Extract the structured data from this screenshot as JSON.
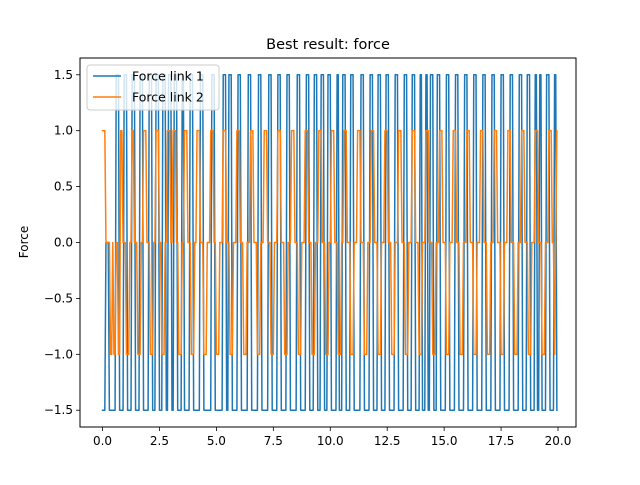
{
  "chart_data": {
    "type": "line",
    "title": "Best result: force",
    "xlabel": "",
    "ylabel": "Force",
    "xlim": [
      -0.99,
      20.79
    ],
    "ylim": [
      -1.65,
      1.65
    ],
    "xticks": [
      0.0,
      2.5,
      5.0,
      7.5,
      10.0,
      12.5,
      15.0,
      17.5,
      20.0
    ],
    "xtick_labels": [
      "0.0",
      "2.5",
      "5.0",
      "7.5",
      "10.0",
      "12.5",
      "15.0",
      "17.5",
      "20.0"
    ],
    "yticks": [
      -1.5,
      -1.0,
      -0.5,
      0.0,
      0.5,
      1.0,
      1.5
    ],
    "ytick_labels": [
      "−1.5",
      "−1.0",
      "−0.5",
      "0.0",
      "0.5",
      "1.0",
      "1.5"
    ],
    "grid": false,
    "legend_position": "upper-left",
    "sample_interval": 0.05,
    "series": [
      {
        "name": "Force link 1",
        "color": "#1f77b4",
        "steps": [
          [
            0.0,
            -1.5
          ],
          [
            0.15,
            0.0
          ],
          [
            0.3,
            -1.5
          ],
          [
            0.6,
            1.5
          ],
          [
            0.75,
            -1.5
          ],
          [
            0.95,
            1.5
          ],
          [
            1.1,
            -1.5
          ],
          [
            1.3,
            1.5
          ],
          [
            1.45,
            -1.5
          ],
          [
            1.65,
            1.5
          ],
          [
            1.8,
            -1.5
          ],
          [
            2.05,
            1.5
          ],
          [
            2.2,
            -1.5
          ],
          [
            2.35,
            1.5
          ],
          [
            2.5,
            -1.5
          ],
          [
            2.65,
            1.5
          ],
          [
            2.8,
            -1.5
          ],
          [
            2.9,
            1.5
          ],
          [
            3.05,
            -1.5
          ],
          [
            3.15,
            1.5
          ],
          [
            3.3,
            -1.5
          ],
          [
            3.5,
            1.5
          ],
          [
            3.6,
            -1.5
          ],
          [
            3.85,
            1.5
          ],
          [
            4.0,
            -1.5
          ],
          [
            4.3,
            1.5
          ],
          [
            4.45,
            -1.5
          ],
          [
            4.8,
            1.5
          ],
          [
            4.95,
            -1.5
          ],
          [
            5.3,
            1.5
          ],
          [
            5.45,
            -1.5
          ],
          [
            5.55,
            1.5
          ],
          [
            5.7,
            -1.5
          ],
          [
            5.95,
            1.5
          ],
          [
            6.1,
            -1.5
          ],
          [
            6.4,
            1.5
          ],
          [
            6.55,
            -1.5
          ],
          [
            6.85,
            1.5
          ],
          [
            7.0,
            -1.5
          ],
          [
            7.3,
            1.5
          ],
          [
            7.45,
            -1.5
          ],
          [
            7.7,
            1.5
          ],
          [
            7.85,
            -1.5
          ],
          [
            8.1,
            1.5
          ],
          [
            8.25,
            -1.5
          ],
          [
            8.55,
            1.5
          ],
          [
            8.7,
            -1.5
          ],
          [
            8.95,
            1.5
          ],
          [
            9.1,
            -1.5
          ],
          [
            9.3,
            1.5
          ],
          [
            9.45,
            -1.5
          ],
          [
            9.6,
            1.5
          ],
          [
            9.75,
            -1.5
          ],
          [
            9.9,
            1.5
          ],
          [
            10.05,
            -1.5
          ],
          [
            10.3,
            1.5
          ],
          [
            10.4,
            -1.5
          ],
          [
            10.55,
            1.5
          ],
          [
            10.7,
            -1.5
          ],
          [
            10.9,
            1.5
          ],
          [
            11.05,
            -1.5
          ],
          [
            11.35,
            1.5
          ],
          [
            11.5,
            -1.5
          ],
          [
            11.75,
            1.5
          ],
          [
            11.9,
            -1.5
          ],
          [
            12.1,
            1.5
          ],
          [
            12.25,
            -1.5
          ],
          [
            12.45,
            1.5
          ],
          [
            12.6,
            -1.5
          ],
          [
            12.85,
            1.5
          ],
          [
            13.0,
            -1.5
          ],
          [
            13.25,
            1.5
          ],
          [
            13.4,
            -1.5
          ],
          [
            13.6,
            1.5
          ],
          [
            13.75,
            -1.5
          ],
          [
            13.95,
            1.5
          ],
          [
            14.05,
            -1.5
          ],
          [
            14.2,
            1.5
          ],
          [
            14.3,
            -1.5
          ],
          [
            14.4,
            1.5
          ],
          [
            14.55,
            -1.5
          ],
          [
            14.7,
            1.5
          ],
          [
            14.85,
            -1.5
          ],
          [
            15.1,
            1.5
          ],
          [
            15.25,
            -1.5
          ],
          [
            15.5,
            1.5
          ],
          [
            15.65,
            -1.5
          ],
          [
            15.9,
            1.5
          ],
          [
            16.05,
            -1.5
          ],
          [
            16.3,
            1.5
          ],
          [
            16.45,
            -1.5
          ],
          [
            16.7,
            1.5
          ],
          [
            16.85,
            -1.5
          ],
          [
            17.1,
            1.5
          ],
          [
            17.25,
            -1.5
          ],
          [
            17.5,
            1.5
          ],
          [
            17.65,
            -1.5
          ],
          [
            17.9,
            1.5
          ],
          [
            18.05,
            -1.5
          ],
          [
            18.3,
            1.5
          ],
          [
            18.45,
            -1.5
          ],
          [
            18.65,
            1.5
          ],
          [
            18.8,
            -1.5
          ],
          [
            19.0,
            1.5
          ],
          [
            19.1,
            -1.5
          ],
          [
            19.2,
            1.5
          ],
          [
            19.3,
            -1.5
          ],
          [
            19.5,
            1.5
          ],
          [
            19.65,
            -1.5
          ],
          [
            19.85,
            1.5
          ],
          [
            19.95,
            -1.5
          ]
        ]
      },
      {
        "name": "Force link 2",
        "color": "#ff7f0e",
        "steps": [
          [
            0.0,
            1.0
          ],
          [
            0.15,
            0.0
          ],
          [
            0.35,
            -1.0
          ],
          [
            0.45,
            0.0
          ],
          [
            0.5,
            -1.0
          ],
          [
            0.6,
            0.0
          ],
          [
            0.7,
            -1.0
          ],
          [
            0.8,
            1.0
          ],
          [
            0.9,
            0.0
          ],
          [
            1.05,
            -1.0
          ],
          [
            1.2,
            0.0
          ],
          [
            1.3,
            1.0
          ],
          [
            1.4,
            0.0
          ],
          [
            1.55,
            -1.0
          ],
          [
            1.7,
            0.0
          ],
          [
            1.8,
            1.0
          ],
          [
            1.95,
            0.0
          ],
          [
            2.1,
            -1.0
          ],
          [
            2.25,
            0.0
          ],
          [
            2.35,
            1.0
          ],
          [
            2.5,
            0.0
          ],
          [
            2.6,
            -1.0
          ],
          [
            2.75,
            0.0
          ],
          [
            2.85,
            1.0
          ],
          [
            3.0,
            0.0
          ],
          [
            3.1,
            1.0
          ],
          [
            3.25,
            0.0
          ],
          [
            3.35,
            -1.0
          ],
          [
            3.5,
            0.0
          ],
          [
            3.6,
            1.0
          ],
          [
            3.75,
            0.0
          ],
          [
            3.9,
            -1.0
          ],
          [
            4.05,
            0.0
          ],
          [
            4.15,
            1.0
          ],
          [
            4.3,
            0.0
          ],
          [
            4.45,
            -1.0
          ],
          [
            4.6,
            0.0
          ],
          [
            4.75,
            1.0
          ],
          [
            4.9,
            0.0
          ],
          [
            5.0,
            -1.0
          ],
          [
            5.15,
            0.0
          ],
          [
            5.3,
            1.0
          ],
          [
            5.45,
            0.0
          ],
          [
            5.6,
            -1.0
          ],
          [
            5.75,
            0.0
          ],
          [
            5.9,
            1.0
          ],
          [
            6.05,
            0.0
          ],
          [
            6.2,
            -1.0
          ],
          [
            6.35,
            0.0
          ],
          [
            6.5,
            1.0
          ],
          [
            6.65,
            0.0
          ],
          [
            6.8,
            -1.0
          ],
          [
            6.95,
            0.0
          ],
          [
            7.1,
            1.0
          ],
          [
            7.25,
            0.0
          ],
          [
            7.4,
            -1.0
          ],
          [
            7.55,
            0.0
          ],
          [
            7.7,
            1.0
          ],
          [
            7.85,
            0.0
          ],
          [
            8.0,
            -1.0
          ],
          [
            8.15,
            0.0
          ],
          [
            8.3,
            1.0
          ],
          [
            8.45,
            0.0
          ],
          [
            8.6,
            -1.0
          ],
          [
            8.75,
            0.0
          ],
          [
            8.9,
            1.0
          ],
          [
            9.05,
            0.0
          ],
          [
            9.2,
            -1.0
          ],
          [
            9.35,
            0.0
          ],
          [
            9.5,
            1.0
          ],
          [
            9.65,
            0.0
          ],
          [
            9.8,
            -1.0
          ],
          [
            9.95,
            0.0
          ],
          [
            10.05,
            1.0
          ],
          [
            10.2,
            0.0
          ],
          [
            10.35,
            -1.0
          ],
          [
            10.5,
            0.0
          ],
          [
            10.6,
            1.0
          ],
          [
            10.75,
            0.0
          ],
          [
            10.9,
            -1.0
          ],
          [
            11.05,
            0.0
          ],
          [
            11.2,
            1.0
          ],
          [
            11.35,
            0.0
          ],
          [
            11.5,
            -1.0
          ],
          [
            11.65,
            0.0
          ],
          [
            11.8,
            1.0
          ],
          [
            11.95,
            0.0
          ],
          [
            12.1,
            -1.0
          ],
          [
            12.25,
            0.0
          ],
          [
            12.4,
            1.0
          ],
          [
            12.55,
            0.0
          ],
          [
            12.7,
            -1.0
          ],
          [
            12.85,
            0.0
          ],
          [
            13.0,
            1.0
          ],
          [
            13.15,
            0.0
          ],
          [
            13.3,
            -1.0
          ],
          [
            13.45,
            0.0
          ],
          [
            13.6,
            1.0
          ],
          [
            13.75,
            0.0
          ],
          [
            13.9,
            -1.0
          ],
          [
            14.05,
            0.0
          ],
          [
            14.2,
            1.0
          ],
          [
            14.35,
            0.0
          ],
          [
            14.5,
            -1.0
          ],
          [
            14.65,
            0.0
          ],
          [
            14.8,
            1.0
          ],
          [
            14.95,
            0.0
          ],
          [
            15.1,
            -1.0
          ],
          [
            15.25,
            0.0
          ],
          [
            15.4,
            1.0
          ],
          [
            15.55,
            0.0
          ],
          [
            15.7,
            -1.0
          ],
          [
            15.85,
            0.0
          ],
          [
            16.0,
            1.0
          ],
          [
            16.15,
            0.0
          ],
          [
            16.3,
            -1.0
          ],
          [
            16.45,
            0.0
          ],
          [
            16.6,
            1.0
          ],
          [
            16.75,
            0.0
          ],
          [
            16.9,
            -1.0
          ],
          [
            17.05,
            0.0
          ],
          [
            17.2,
            1.0
          ],
          [
            17.35,
            0.0
          ],
          [
            17.5,
            -1.0
          ],
          [
            17.65,
            0.0
          ],
          [
            17.8,
            1.0
          ],
          [
            17.95,
            0.0
          ],
          [
            18.1,
            -1.0
          ],
          [
            18.25,
            0.0
          ],
          [
            18.4,
            1.0
          ],
          [
            18.55,
            0.0
          ],
          [
            18.7,
            -1.0
          ],
          [
            18.85,
            0.0
          ],
          [
            19.0,
            1.0
          ],
          [
            19.15,
            0.0
          ],
          [
            19.3,
            -1.0
          ],
          [
            19.45,
            0.0
          ],
          [
            19.6,
            1.0
          ],
          [
            19.75,
            0.0
          ],
          [
            19.85,
            -1.0
          ],
          [
            19.9,
            0.0
          ],
          [
            19.95,
            1.0
          ]
        ]
      }
    ]
  }
}
